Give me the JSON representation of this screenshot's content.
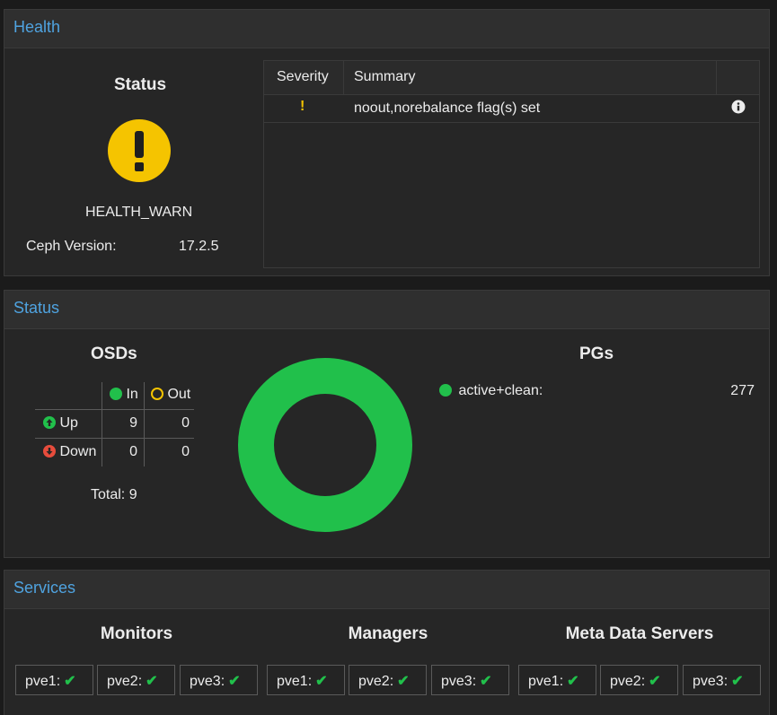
{
  "health": {
    "panel_title": "Health",
    "status_title": "Status",
    "status_icon": "exclamation-icon",
    "state": "HEALTH_WARN",
    "version_label": "Ceph Version:",
    "version_value": "17.2.5",
    "columns": [
      "Severity",
      "Summary"
    ],
    "rows": [
      {
        "severity": "!",
        "summary": "noout,norebalance flag(s) set"
      }
    ]
  },
  "status": {
    "panel_title": "Status",
    "osds": {
      "title": "OSDs",
      "col_in": "In",
      "col_out": "Out",
      "row_up": "Up",
      "row_down": "Down",
      "up_in": "9",
      "up_out": "0",
      "down_in": "0",
      "down_out": "0",
      "total": "Total: 9"
    },
    "pgs": {
      "title": "PGs",
      "states": [
        {
          "label": "active+clean:",
          "count": "277",
          "color": "#21c04b"
        }
      ]
    }
  },
  "services": {
    "panel_title": "Services",
    "groups": [
      {
        "title": "Monitors",
        "nodes": [
          "pve1:",
          "pve2:",
          "pve3:"
        ]
      },
      {
        "title": "Managers",
        "nodes": [
          "pve1:",
          "pve2:",
          "pve3:"
        ]
      },
      {
        "title": "Meta Data Servers",
        "nodes": [
          "pve1:",
          "pve2:",
          "pve3:"
        ]
      }
    ]
  },
  "colors": {
    "accent": "#4fa3e0",
    "warn": "#f5c400",
    "ok": "#21c04b",
    "down": "#e74c3c"
  }
}
